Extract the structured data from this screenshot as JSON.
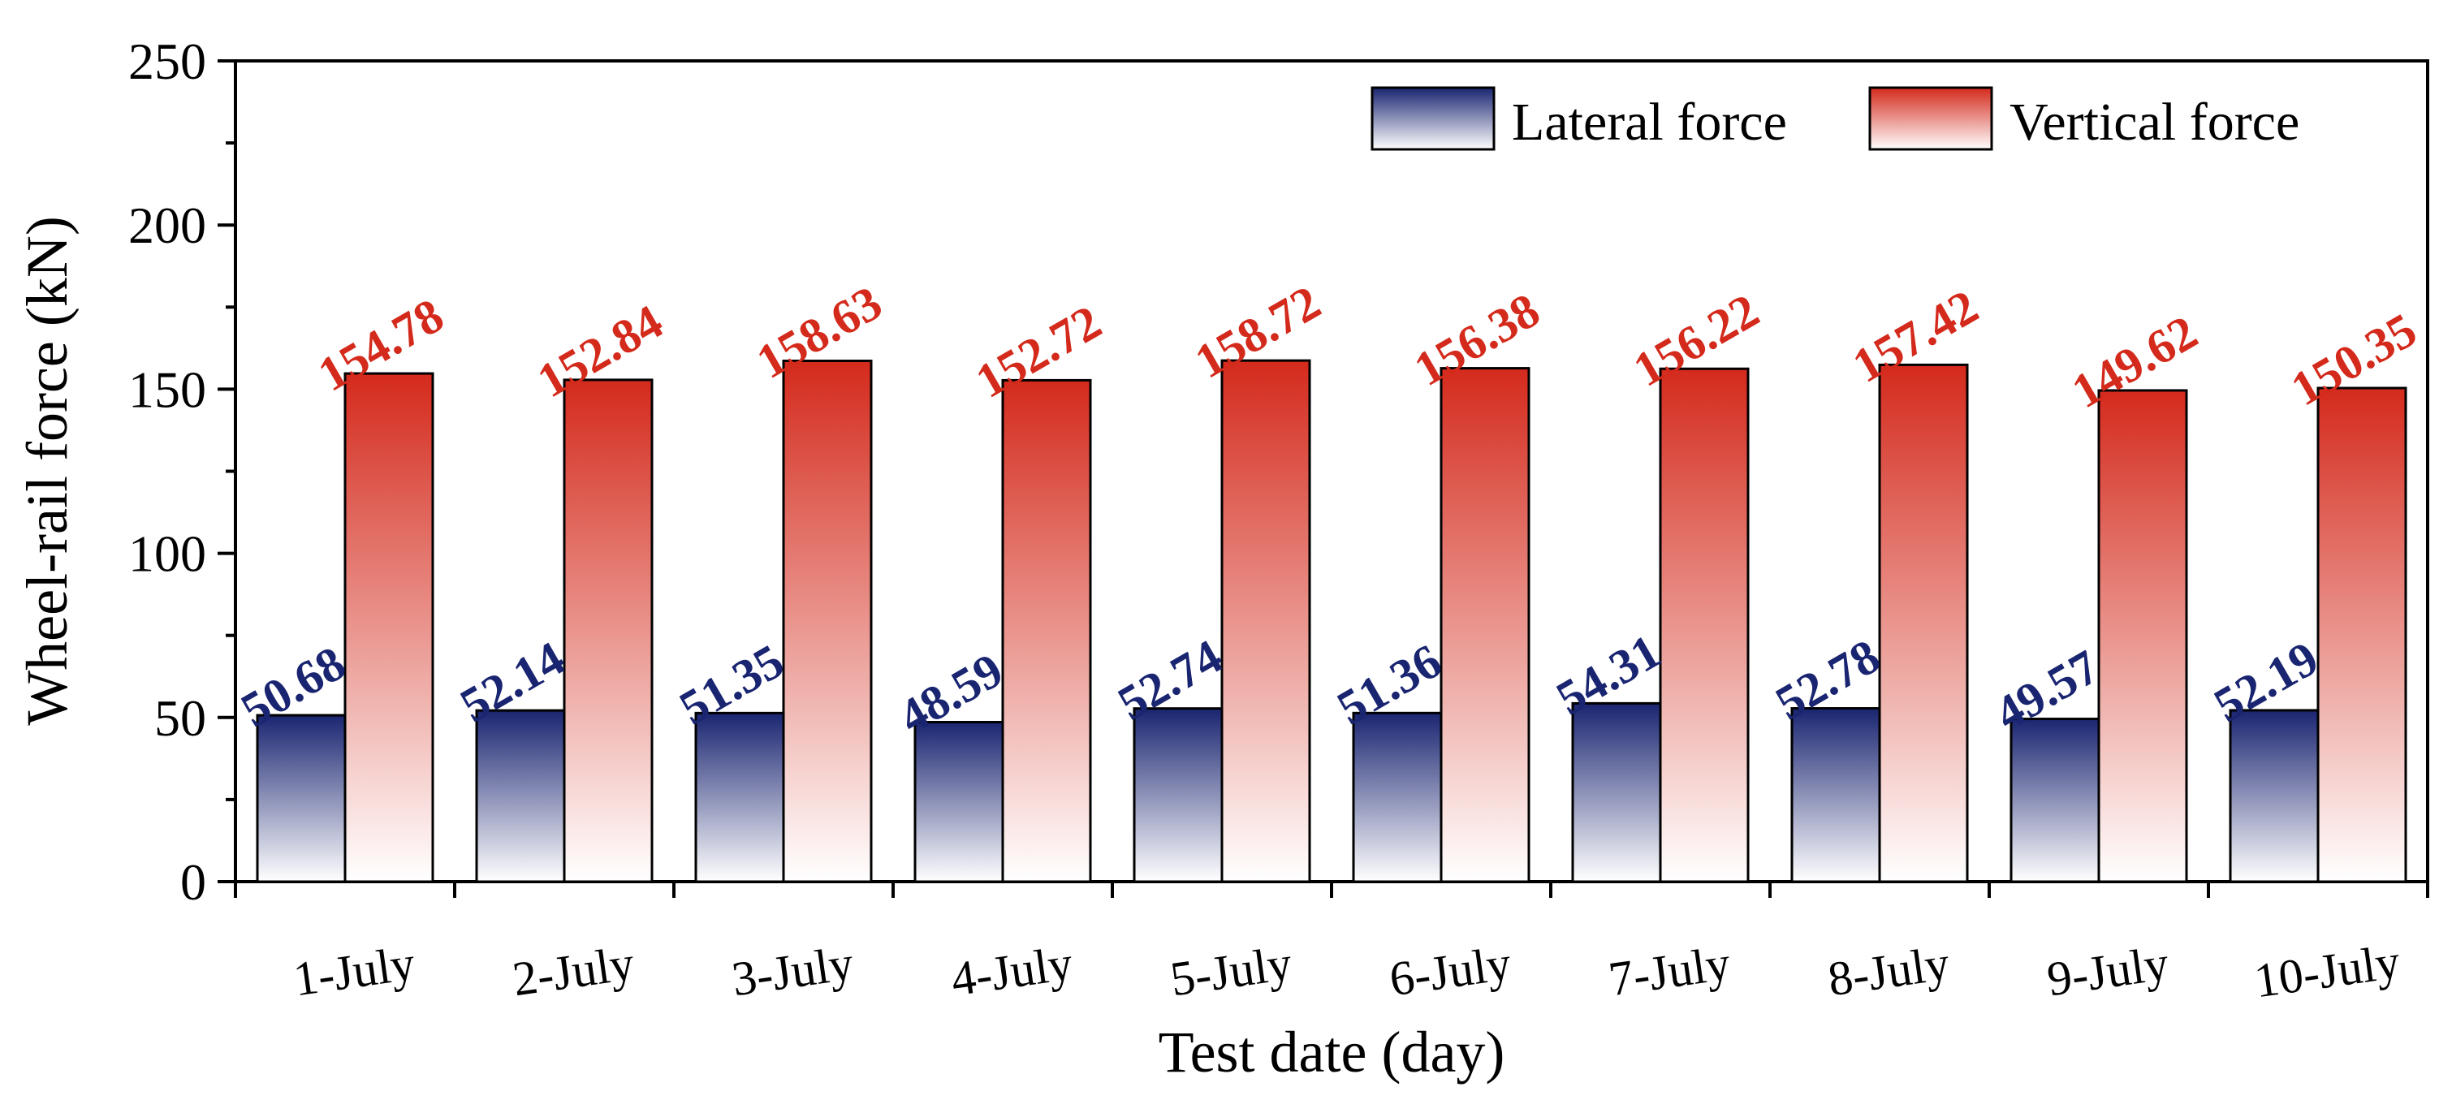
{
  "chart_data": {
    "type": "bar",
    "title": "",
    "xlabel": "Test date (day)",
    "ylabel": "Wheel-rail force (kN)",
    "ylim": [
      0,
      250
    ],
    "yticks": [
      "0",
      "50",
      "100",
      "150",
      "200",
      "250"
    ],
    "categories": [
      "1-July",
      "2-July",
      "3-July",
      "4-July",
      "5-July",
      "6-July",
      "7-July",
      "8-July",
      "9-July",
      "10-July"
    ],
    "series": [
      {
        "name": "Lateral force",
        "color": "#1a2571",
        "values": [
          50.68,
          52.14,
          51.35,
          48.59,
          52.74,
          51.36,
          54.31,
          52.78,
          49.57,
          52.19
        ],
        "labels": [
          "50.68",
          "52.14",
          "51.35",
          "48.59",
          "52.74",
          "51.36",
          "54.31",
          "52.78",
          "49.57",
          "52.19"
        ]
      },
      {
        "name": "Vertical force",
        "color": "#d42a1c",
        "values": [
          154.78,
          152.84,
          158.63,
          152.72,
          158.72,
          156.38,
          156.22,
          157.42,
          149.62,
          150.35
        ],
        "labels": [
          "154.78",
          "152.84",
          "158.63",
          "152.72",
          "158.72",
          "156.38",
          "156.22",
          "157.42",
          "149.62",
          "150.35"
        ]
      }
    ],
    "legend_position": "top-right",
    "grid": false
  }
}
